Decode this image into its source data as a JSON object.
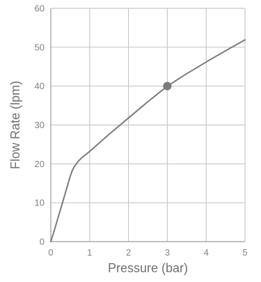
{
  "chart_data": {
    "type": "line",
    "xlabel": "Pressure (bar)",
    "ylabel": "Flow Rate (lpm)",
    "xlim": [
      0,
      5
    ],
    "ylim": [
      0,
      60
    ],
    "x_ticks": [
      0,
      1,
      2,
      3,
      4,
      5
    ],
    "y_ticks": [
      0,
      10,
      20,
      30,
      40,
      50,
      60
    ],
    "grid": true,
    "series": [
      {
        "color": "#7a7a7a",
        "x": [
          0,
          0.1,
          0.2,
          0.3,
          0.4,
          0.5,
          0.55,
          0.6,
          0.7,
          0.8,
          1,
          1.5,
          2,
          2.5,
          3,
          3.5,
          4,
          4.5,
          5
        ],
        "y": [
          0,
          3.2,
          6.6,
          10.0,
          13.4,
          16.8,
          18.2,
          19.2,
          20.6,
          21.6,
          23.2,
          27.6,
          31.8,
          36.0,
          40.0,
          43.2,
          46.2,
          49.1,
          51.9
        ]
      }
    ],
    "highlight_point": {
      "x": 3,
      "y": 40,
      "color": "#7a7a7a"
    }
  }
}
